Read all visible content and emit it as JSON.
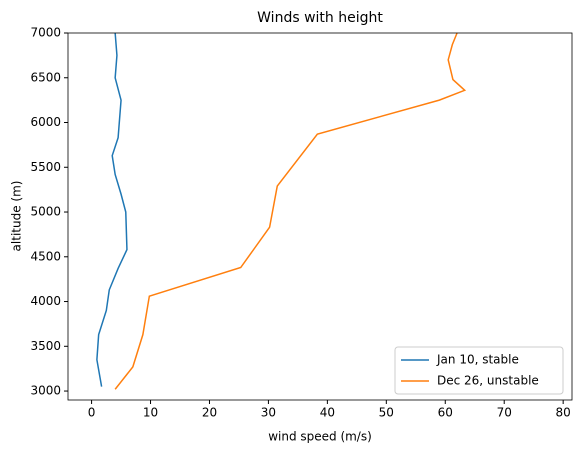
{
  "chart_data": {
    "type": "line",
    "title": "Winds with height",
    "x_label": "wind speed (m/s)",
    "y_label": "altitude (m)",
    "xlim": [
      -4,
      81.5
    ],
    "xticks": [
      0,
      10,
      20,
      30,
      40,
      50,
      60,
      70,
      80
    ],
    "ylim": [
      2900,
      7000
    ],
    "yticks": [
      3000,
      3500,
      4000,
      4500,
      5000,
      5500,
      6000,
      6500,
      7000
    ],
    "legend": "lower right",
    "series": [
      {
        "name": "Jan 10, stable",
        "color": "#1f77b4",
        "x": [
          1.7,
          0.9,
          1.2,
          2.5,
          3,
          4.5,
          6,
          5.8,
          5,
          4,
          3.5,
          4.5,
          5,
          4,
          4.3,
          4
        ],
        "y": [
          3050,
          3350,
          3630,
          3900,
          4130,
          4370,
          4580,
          5000,
          5200,
          5420,
          5630,
          5830,
          6250,
          6500,
          6750,
          7000
        ]
      },
      {
        "name": "Dec 26, unstable",
        "color": "#ff7f0e",
        "x": [
          4,
          7,
          8.7,
          9.8,
          25.3,
          30.2,
          31.5,
          38.3,
          59,
          63.3,
          61.3,
          60.5,
          61.2,
          62
        ],
        "y": [
          3020,
          3270,
          3630,
          4060,
          4380,
          4830,
          5290,
          5870,
          6250,
          6360,
          6480,
          6700,
          6870,
          7000
        ]
      }
    ]
  }
}
